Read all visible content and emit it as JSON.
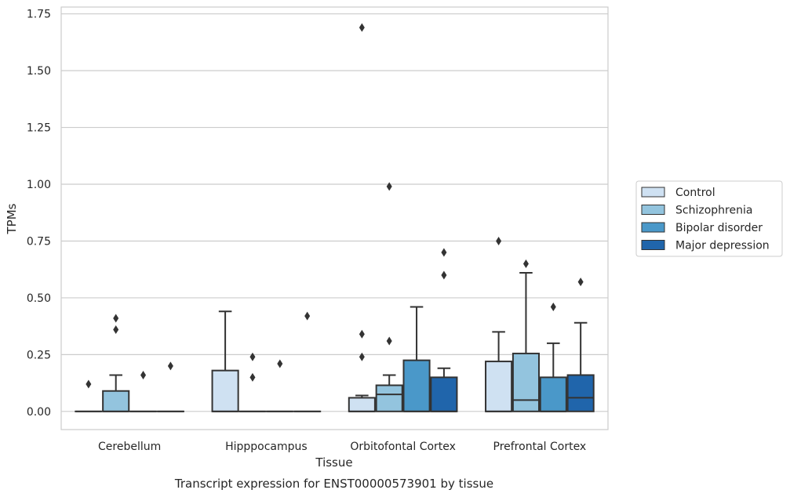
{
  "caption": "Transcript expression for ENST00000573901 by tissue",
  "chart_data": {
    "type": "box",
    "xlabel": "Tissue",
    "ylabel": "TPMs",
    "ylim": [
      -0.08,
      1.78
    ],
    "yticks": [
      "0.00",
      "0.25",
      "0.50",
      "0.75",
      "1.00",
      "1.25",
      "1.50",
      "1.75"
    ],
    "ytick_values": [
      0,
      0.25,
      0.5,
      0.75,
      1.0,
      1.25,
      1.5,
      1.75
    ],
    "grid": "horizontal",
    "legend_position": "right",
    "categories": [
      "Cerebellum",
      "Hipppocampus",
      "Orbitofontal Cortex",
      "Prefrontal Cortex"
    ],
    "series": [
      {
        "name": "Control",
        "color": "#cfe1f2",
        "boxes": [
          {
            "q1": 0,
            "median": 0,
            "q3": 0,
            "whisker_low": 0,
            "whisker_high": 0,
            "outliers": [
              0.12
            ]
          },
          {
            "q1": 0,
            "median": 0,
            "q3": 0.18,
            "whisker_low": 0,
            "whisker_high": 0.44,
            "outliers": []
          },
          {
            "q1": 0,
            "median": 0,
            "q3": 0.06,
            "whisker_low": 0,
            "whisker_high": 0.07,
            "outliers": [
              0.24,
              0.34,
              1.69
            ]
          },
          {
            "q1": 0,
            "median": 0,
            "q3": 0.22,
            "whisker_low": 0,
            "whisker_high": 0.35,
            "outliers": [
              0.75
            ]
          }
        ]
      },
      {
        "name": "Schizophrenia",
        "color": "#93c4de",
        "boxes": [
          {
            "q1": 0,
            "median": 0,
            "q3": 0.09,
            "whisker_low": 0,
            "whisker_high": 0.16,
            "outliers": [
              0.36,
              0.41
            ]
          },
          {
            "q1": 0,
            "median": 0,
            "q3": 0,
            "whisker_low": 0,
            "whisker_high": 0,
            "outliers": [
              0.15,
              0.24
            ]
          },
          {
            "q1": 0,
            "median": 0.075,
            "q3": 0.115,
            "whisker_low": 0,
            "whisker_high": 0.16,
            "outliers": [
              0.31,
              0.99
            ]
          },
          {
            "q1": 0,
            "median": 0.05,
            "q3": 0.255,
            "whisker_low": 0,
            "whisker_high": 0.61,
            "outliers": [
              0.65
            ]
          }
        ]
      },
      {
        "name": "Bipolar disorder",
        "color": "#4a98c9",
        "boxes": [
          {
            "q1": 0,
            "median": 0,
            "q3": 0,
            "whisker_low": 0,
            "whisker_high": 0,
            "outliers": [
              0.16
            ]
          },
          {
            "q1": 0,
            "median": 0,
            "q3": 0,
            "whisker_low": 0,
            "whisker_high": 0,
            "outliers": [
              0.21
            ]
          },
          {
            "q1": 0,
            "median": 0,
            "q3": 0.225,
            "whisker_low": 0,
            "whisker_high": 0.46,
            "outliers": []
          },
          {
            "q1": 0,
            "median": 0,
            "q3": 0.15,
            "whisker_low": 0,
            "whisker_high": 0.3,
            "outliers": [
              0.46
            ]
          }
        ]
      },
      {
        "name": "Major depression",
        "color": "#2065ab",
        "boxes": [
          {
            "q1": 0,
            "median": 0,
            "q3": 0,
            "whisker_low": 0,
            "whisker_high": 0,
            "outliers": [
              0.2
            ]
          },
          {
            "q1": 0,
            "median": 0,
            "q3": 0,
            "whisker_low": 0,
            "whisker_high": 0,
            "outliers": [
              0.42
            ]
          },
          {
            "q1": 0,
            "median": 0,
            "q3": 0.15,
            "whisker_low": 0,
            "whisker_high": 0.19,
            "outliers": [
              0.6,
              0.7
            ]
          },
          {
            "q1": 0,
            "median": 0.06,
            "q3": 0.16,
            "whisker_low": 0,
            "whisker_high": 0.39,
            "outliers": [
              0.57
            ]
          }
        ]
      }
    ]
  }
}
